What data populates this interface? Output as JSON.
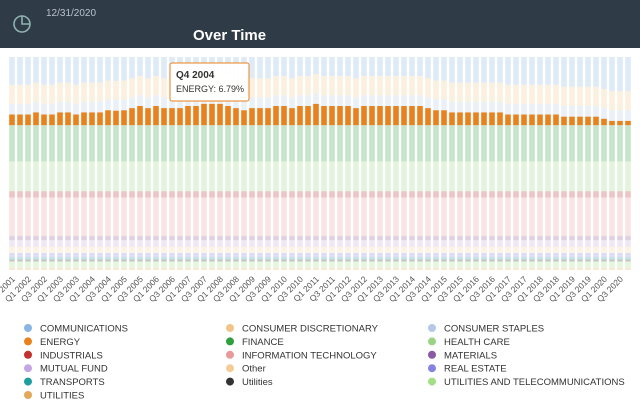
{
  "header": {
    "date": "12/31/2020"
  },
  "chart_data": {
    "type": "bar",
    "stacked": true,
    "title": "Over Time",
    "categories": [
      "Q3 2001",
      null,
      "Q1 2002",
      null,
      "Q3 2002",
      null,
      "Q1 2003",
      null,
      "Q3 2003",
      null,
      "Q1 2004",
      null,
      "Q3 2004",
      null,
      "Q1 2005",
      null,
      "Q3 2005",
      null,
      "Q1 2006",
      null,
      "Q3 2006",
      null,
      "Q1 2007",
      null,
      "Q3 2007",
      null,
      "Q1 2008",
      null,
      "Q3 2008",
      null,
      "Q1 2009",
      null,
      "Q3 2009",
      null,
      "Q1 2010",
      null,
      "Q3 2010",
      null,
      "Q1 2011",
      null,
      "Q3 2011",
      null,
      "Q1 2012",
      null,
      "Q3 2012",
      null,
      "Q1 2013",
      null,
      "Q3 2013",
      null,
      "Q1 2014",
      null,
      "Q3 2014",
      null,
      "Q1 2015",
      null,
      "Q3 2015",
      null,
      "Q1 2016",
      null,
      "Q3 2016",
      null,
      "Q1 2017",
      null,
      "Q3 2017",
      null,
      "Q1 2018",
      null,
      "Q3 2018",
      null,
      "Q1 2019",
      null,
      "Q3 2019",
      null,
      "Q1 2020",
      null,
      "Q3 2020",
      null
    ],
    "ylim": [
      0,
      100
    ],
    "active_series": "ENERGY",
    "tooltip": {
      "title": "Q4 2004",
      "label": "ENERGY: 6.79%"
    },
    "series": [
      {
        "name": "COMMUNICATIONS",
        "color": "#8ab6e3",
        "values": [
          13,
          13,
          13,
          12,
          13,
          13,
          12,
          12,
          13,
          12,
          12,
          12,
          11,
          11.21,
          11,
          10,
          9,
          10,
          9,
          10,
          10,
          10,
          9,
          9,
          8,
          8,
          8,
          9,
          10,
          11,
          10,
          10,
          10,
          9,
          9,
          10,
          9,
          9,
          8,
          9,
          9,
          9,
          9,
          10,
          9,
          9,
          9,
          9,
          9,
          9,
          9,
          9,
          10,
          11,
          11,
          12,
          12,
          12,
          12,
          12,
          12,
          12,
          13,
          13,
          13,
          13,
          13,
          13,
          13,
          14,
          14,
          14,
          14,
          14,
          15,
          16,
          16,
          16
        ]
      },
      {
        "name": "CONSUMER DISCRETIONARY",
        "color": "#f1c48a",
        "values": [
          9,
          9,
          9,
          9,
          9,
          9,
          9,
          9,
          9,
          9,
          9,
          9,
          9,
          9,
          9,
          9,
          9,
          9,
          9,
          9,
          9,
          9,
          9,
          9,
          9,
          9,
          9,
          9,
          9,
          9,
          9,
          9,
          9,
          9,
          9,
          9,
          9,
          9,
          9,
          9,
          9,
          9,
          9,
          9,
          9,
          9,
          9,
          9,
          9,
          9,
          9,
          9,
          9,
          9,
          9,
          9,
          9,
          9,
          9,
          9,
          9,
          9,
          9,
          9,
          9,
          9,
          9,
          9,
          9,
          9,
          9,
          9,
          9,
          9,
          9,
          9,
          9,
          9
        ]
      },
      {
        "name": "CONSUMER STAPLES",
        "color": "#b4c9e6",
        "values": [
          5,
          5,
          5,
          5,
          5,
          5,
          5,
          5,
          5,
          5,
          5,
          5,
          5,
          5,
          5,
          5,
          5,
          5,
          5,
          5,
          5,
          5,
          5,
          5,
          5,
          5,
          5,
          5,
          5,
          5,
          5,
          5,
          5,
          5,
          5,
          5,
          5,
          5,
          5,
          5,
          5,
          5,
          5,
          5,
          5,
          5,
          5,
          5,
          5,
          5,
          5,
          5,
          5,
          5,
          5,
          5,
          5,
          5,
          5,
          5,
          5,
          5,
          5,
          5,
          5,
          5,
          5,
          5,
          5,
          5,
          5,
          5,
          5,
          5,
          5,
          5,
          5,
          5
        ]
      },
      {
        "name": "ENERGY",
        "color": "#e8821e",
        "values": [
          5,
          5,
          5,
          6,
          5,
          5,
          6,
          6,
          5,
          6,
          6,
          6,
          7,
          6.79,
          7,
          8,
          9,
          8,
          9,
          8,
          8,
          8,
          9,
          9,
          10,
          10,
          10,
          9,
          8,
          7,
          8,
          8,
          8,
          9,
          9,
          8,
          9,
          9,
          10,
          9,
          9,
          9,
          9,
          8,
          9,
          9,
          9,
          9,
          9,
          9,
          9,
          9,
          8,
          7,
          7,
          6,
          6,
          6,
          6,
          6,
          6,
          6,
          5,
          5,
          5,
          5,
          5,
          5,
          5,
          4,
          4,
          4,
          4,
          4,
          3,
          2,
          2,
          2
        ]
      },
      {
        "name": "FINANCE",
        "color": "#2e9e3e",
        "values": [
          17,
          17,
          17,
          17,
          17,
          17,
          17,
          17,
          17,
          17,
          17,
          17,
          17,
          17,
          17,
          17,
          17,
          17,
          17,
          17,
          17,
          17,
          17,
          17,
          17,
          17,
          17,
          17,
          17,
          17,
          17,
          17,
          17,
          17,
          17,
          17,
          17,
          17,
          17,
          17,
          17,
          17,
          17,
          17,
          17,
          17,
          17,
          17,
          17,
          17,
          17,
          17,
          17,
          17,
          17,
          17,
          17,
          17,
          17,
          17,
          17,
          17,
          17,
          17,
          17,
          17,
          17,
          17,
          17,
          17,
          17,
          17,
          17,
          17,
          17,
          17,
          17,
          17
        ]
      },
      {
        "name": "HEALTH CARE",
        "color": "#9ad486",
        "values": [
          14,
          14,
          14,
          14,
          14,
          14,
          14,
          14,
          14,
          14,
          14,
          14,
          14,
          14,
          14,
          14,
          14,
          14,
          14,
          14,
          14,
          14,
          14,
          14,
          14,
          14,
          14,
          14,
          14,
          14,
          14,
          14,
          14,
          14,
          14,
          14,
          14,
          14,
          14,
          14,
          14,
          14,
          14,
          14,
          14,
          14,
          14,
          14,
          14,
          14,
          14,
          14,
          14,
          14,
          14,
          14,
          14,
          14,
          14,
          14,
          14,
          14,
          14,
          14,
          14,
          14,
          14,
          14,
          14,
          14,
          14,
          14,
          14,
          14,
          14,
          14,
          14,
          14
        ]
      },
      {
        "name": "INDUSTRIALS",
        "color": "#c23030",
        "values": [
          3,
          3,
          3,
          3,
          3,
          3,
          3,
          3,
          3,
          3,
          3,
          3,
          3,
          3,
          3,
          3,
          3,
          3,
          3,
          3,
          3,
          3,
          3,
          3,
          3,
          3,
          3,
          3,
          3,
          3,
          3,
          3,
          3,
          3,
          3,
          3,
          3,
          3,
          3,
          3,
          3,
          3,
          3,
          3,
          3,
          3,
          3,
          3,
          3,
          3,
          3,
          3,
          3,
          3,
          3,
          3,
          3,
          3,
          3,
          3,
          3,
          3,
          3,
          3,
          3,
          3,
          3,
          3,
          3,
          3,
          3,
          3,
          3,
          3,
          3,
          3,
          3,
          3
        ]
      },
      {
        "name": "INFORMATION TECHNOLOGY",
        "color": "#e89a9a",
        "values": [
          18,
          18,
          18,
          18,
          18,
          18,
          18,
          18,
          18,
          18,
          18,
          18,
          18,
          18,
          18,
          18,
          18,
          18,
          18,
          18,
          18,
          18,
          18,
          18,
          18,
          18,
          18,
          18,
          18,
          18,
          18,
          18,
          18,
          18,
          18,
          18,
          18,
          18,
          18,
          18,
          18,
          18,
          18,
          18,
          18,
          18,
          18,
          18,
          18,
          18,
          18,
          18,
          18,
          18,
          18,
          18,
          18,
          18,
          18,
          18,
          18,
          18,
          18,
          18,
          18,
          18,
          18,
          18,
          18,
          18,
          18,
          18,
          18,
          18,
          18,
          18,
          18,
          18
        ]
      },
      {
        "name": "MATERIALS",
        "color": "#8a5aa3",
        "values": [
          2,
          2,
          2,
          2,
          2,
          2,
          2,
          2,
          2,
          2,
          2,
          2,
          2,
          2,
          2,
          2,
          2,
          2,
          2,
          2,
          2,
          2,
          2,
          2,
          2,
          2,
          2,
          2,
          2,
          2,
          2,
          2,
          2,
          2,
          2,
          2,
          2,
          2,
          2,
          2,
          2,
          2,
          2,
          2,
          2,
          2,
          2,
          2,
          2,
          2,
          2,
          2,
          2,
          2,
          2,
          2,
          2,
          2,
          2,
          2,
          2,
          2,
          2,
          2,
          2,
          2,
          2,
          2,
          2,
          2,
          2,
          2,
          2,
          2,
          2,
          2,
          2,
          2
        ]
      },
      {
        "name": "MUTUAL FUND",
        "color": "#c4a6e3",
        "values": [
          3,
          3,
          3,
          3,
          3,
          3,
          3,
          3,
          3,
          3,
          3,
          3,
          3,
          3,
          3,
          3,
          3,
          3,
          3,
          3,
          3,
          3,
          3,
          3,
          3,
          3,
          3,
          3,
          3,
          3,
          3,
          3,
          3,
          3,
          3,
          3,
          3,
          3,
          3,
          3,
          3,
          3,
          3,
          3,
          3,
          3,
          3,
          3,
          3,
          3,
          3,
          3,
          3,
          3,
          3,
          3,
          3,
          3,
          3,
          3,
          3,
          3,
          3,
          3,
          3,
          3,
          3,
          3,
          3,
          3,
          3,
          3,
          3,
          3,
          3,
          3,
          3,
          3
        ]
      },
      {
        "name": "Other",
        "color": "#f5cc98",
        "values": [
          3,
          3,
          3,
          3,
          3,
          3,
          3,
          3,
          3,
          3,
          3,
          3,
          3,
          3,
          3,
          3,
          3,
          3,
          3,
          3,
          3,
          3,
          3,
          3,
          3,
          3,
          3,
          3,
          3,
          3,
          3,
          3,
          3,
          3,
          3,
          3,
          3,
          3,
          3,
          3,
          3,
          3,
          3,
          3,
          3,
          3,
          3,
          3,
          3,
          3,
          3,
          3,
          3,
          3,
          3,
          3,
          3,
          3,
          3,
          3,
          3,
          3,
          3,
          3,
          3,
          3,
          3,
          3,
          3,
          3,
          3,
          3,
          3,
          3,
          3,
          3,
          3,
          3
        ]
      },
      {
        "name": "REAL ESTATE",
        "color": "#8484e0",
        "values": [
          2,
          2,
          2,
          2,
          2,
          2,
          2,
          2,
          2,
          2,
          2,
          2,
          2,
          2,
          2,
          2,
          2,
          2,
          2,
          2,
          2,
          2,
          2,
          2,
          2,
          2,
          2,
          2,
          2,
          2,
          2,
          2,
          2,
          2,
          2,
          2,
          2,
          2,
          2,
          2,
          2,
          2,
          2,
          2,
          2,
          2,
          2,
          2,
          2,
          2,
          2,
          2,
          2,
          2,
          2,
          2,
          2,
          2,
          2,
          2,
          2,
          2,
          2,
          2,
          2,
          2,
          2,
          2,
          2,
          2,
          2,
          2,
          2,
          2,
          2,
          2,
          2,
          2
        ]
      },
      {
        "name": "TRANSPORTS",
        "color": "#1e9e9e",
        "values": [
          1,
          1,
          1,
          1,
          1,
          1,
          1,
          1,
          1,
          1,
          1,
          1,
          1,
          1,
          1,
          1,
          1,
          1,
          1,
          1,
          1,
          1,
          1,
          1,
          1,
          1,
          1,
          1,
          1,
          1,
          1,
          1,
          1,
          1,
          1,
          1,
          1,
          1,
          1,
          1,
          1,
          1,
          1,
          1,
          1,
          1,
          1,
          1,
          1,
          1,
          1,
          1,
          1,
          1,
          1,
          1,
          1,
          1,
          1,
          1,
          1,
          1,
          1,
          1,
          1,
          1,
          1,
          1,
          1,
          1,
          1,
          1,
          1,
          1,
          1,
          1,
          1,
          1
        ]
      },
      {
        "name": "Utilities",
        "color": "#333333",
        "values": [
          1,
          1,
          1,
          1,
          1,
          1,
          1,
          1,
          1,
          1,
          1,
          1,
          1,
          1,
          1,
          1,
          1,
          1,
          1,
          1,
          1,
          1,
          1,
          1,
          1,
          1,
          1,
          1,
          1,
          1,
          1,
          1,
          1,
          1,
          1,
          1,
          1,
          1,
          1,
          1,
          1,
          1,
          1,
          1,
          1,
          1,
          1,
          1,
          1,
          1,
          1,
          1,
          1,
          1,
          1,
          1,
          1,
          1,
          1,
          1,
          1,
          1,
          1,
          1,
          1,
          1,
          1,
          1,
          1,
          1,
          1,
          1,
          1,
          1,
          1,
          1,
          1,
          1
        ]
      },
      {
        "name": "UTILITIES AND TELECOMMUNICATIONS",
        "color": "#a2e086",
        "values": [
          3,
          3,
          3,
          3,
          3,
          3,
          3,
          3,
          3,
          3,
          3,
          3,
          3,
          3,
          3,
          3,
          3,
          3,
          3,
          3,
          3,
          3,
          3,
          3,
          3,
          3,
          3,
          3,
          3,
          3,
          3,
          3,
          3,
          3,
          3,
          3,
          3,
          3,
          3,
          3,
          3,
          3,
          3,
          3,
          3,
          3,
          3,
          3,
          3,
          3,
          3,
          3,
          3,
          3,
          3,
          3,
          3,
          3,
          3,
          3,
          3,
          3,
          3,
          3,
          3,
          3,
          3,
          3,
          3,
          3,
          3,
          3,
          3,
          3,
          3,
          3,
          3,
          3
        ]
      },
      {
        "name": "UTILITIES",
        "color": "#e3a75a",
        "values": [
          1,
          1,
          1,
          1,
          1,
          1,
          1,
          1,
          1,
          1,
          1,
          1,
          1,
          1,
          1,
          1,
          1,
          1,
          1,
          1,
          1,
          1,
          1,
          1,
          1,
          1,
          1,
          1,
          1,
          1,
          1,
          1,
          1,
          1,
          1,
          1,
          1,
          1,
          1,
          1,
          1,
          1,
          1,
          1,
          1,
          1,
          1,
          1,
          1,
          1,
          1,
          1,
          1,
          1,
          1,
          1,
          1,
          1,
          1,
          1,
          1,
          1,
          1,
          1,
          1,
          1,
          1,
          1,
          1,
          1,
          1,
          1,
          1,
          1,
          1,
          1,
          1,
          1
        ]
      }
    ]
  }
}
